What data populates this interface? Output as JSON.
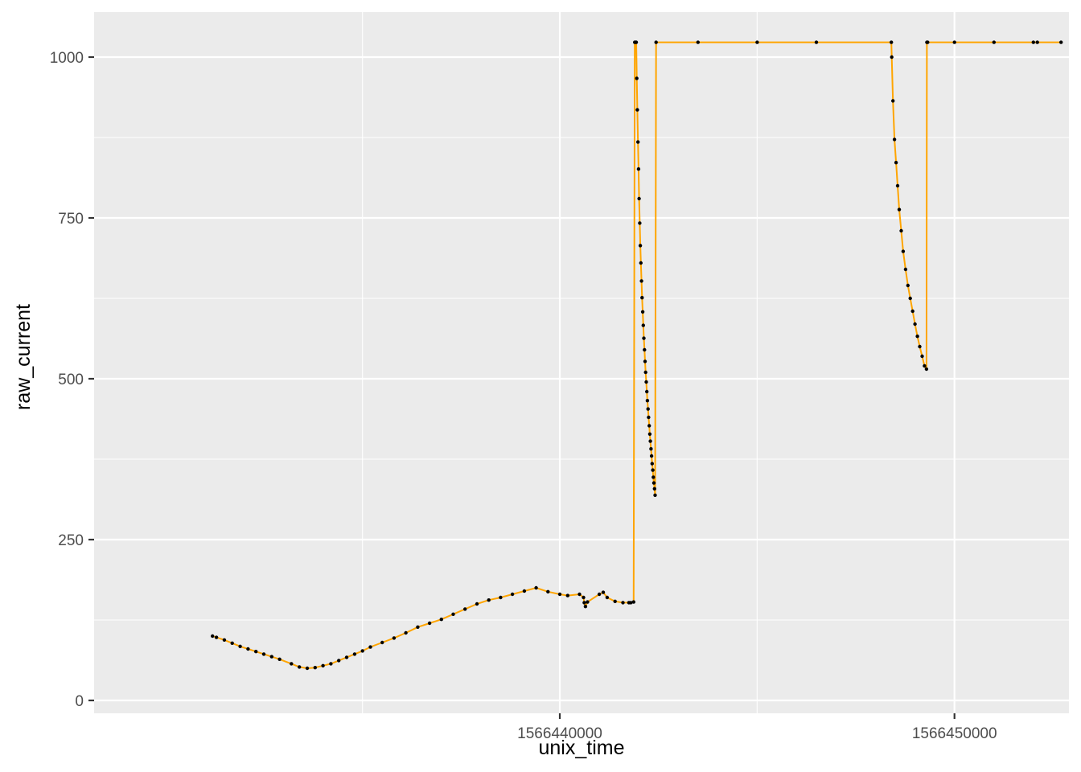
{
  "chart_data": {
    "type": "line",
    "xlabel": "unix_time",
    "ylabel": "raw_current",
    "xlim": [
      1566428200,
      1566452900
    ],
    "ylim": [
      -20,
      1070
    ],
    "x_ticks": [
      1566440000,
      1566450000
    ],
    "x_tick_labels": [
      "1566440000",
      "1566450000"
    ],
    "y_ticks": [
      0,
      250,
      500,
      750,
      1000
    ],
    "y_tick_labels": [
      "0",
      "250",
      "500",
      "750",
      "1000"
    ],
    "grid": true,
    "legend": "none",
    "panel_color": "#ebebeb",
    "grid_color": "#ffffff",
    "line_color": "#ffa500",
    "point_color": "#000000",
    "series": [
      {
        "x": [
          1566431200,
          1566431300,
          1566431500,
          1566431700,
          1566431900,
          1566432100,
          1566432300,
          1566432500,
          1566432700,
          1566432900,
          1566433200,
          1566433400,
          1566433600,
          1566433800,
          1566434000,
          1566434200,
          1566434400,
          1566434600,
          1566434800,
          1566435000,
          1566435200,
          1566435500,
          1566435800,
          1566436100,
          1566436400,
          1566436700,
          1566437000,
          1566437300,
          1566437600,
          1566437900,
          1566438200,
          1566438500,
          1566438800,
          1566439100,
          1566439400,
          1566439700,
          1566440000,
          1566440200,
          1566440500,
          1566440600,
          1566440620,
          1566440650,
          1566440700,
          1566441000,
          1566441100,
          1566441200,
          1566441400,
          1566441600,
          1566441750,
          1566441800,
          1566441870,
          1566441900,
          1566441920,
          1566441935,
          1566441950,
          1566441965,
          1566441980,
          1566441995,
          1566442010,
          1566442025,
          1566442040,
          1566442055,
          1566442070,
          1566442085,
          1566442100,
          1566442115,
          1566442130,
          1566442145,
          1566442160,
          1566442175,
          1566442190,
          1566442205,
          1566442220,
          1566442235,
          1566442250,
          1566442265,
          1566442280,
          1566442295,
          1566442310,
          1566442325,
          1566442340,
          1566442355,
          1566442370,
          1566442385,
          1566442400,
          1566442415,
          1566442440,
          1566443500,
          1566445000,
          1566446500,
          1566448400,
          1566448410,
          1566448440,
          1566448480,
          1566448520,
          1566448560,
          1566448600,
          1566448650,
          1566448700,
          1566448760,
          1566448820,
          1566448880,
          1566448940,
          1566449000,
          1566449060,
          1566449120,
          1566449180,
          1566449240,
          1566449290,
          1566449300,
          1566449320,
          1566450000,
          1566451000,
          1566452000,
          1566452100,
          1566452700
        ],
        "y": [
          100,
          98,
          94,
          89,
          84,
          80,
          76,
          72,
          68,
          64,
          57,
          52,
          50,
          51,
          54,
          57,
          62,
          67,
          72,
          77,
          83,
          90,
          97,
          105,
          114,
          120,
          126,
          134,
          142,
          150,
          156,
          160,
          165,
          170,
          175,
          169,
          165,
          163,
          165,
          160,
          152,
          146,
          153,
          165,
          168,
          160,
          154,
          152,
          152,
          152,
          153,
          1023,
          1023,
          1023,
          967,
          918,
          868,
          826,
          780,
          742,
          707,
          680,
          652,
          626,
          604,
          583,
          563,
          545,
          527,
          510,
          495,
          480,
          466,
          453,
          440,
          427,
          414,
          403,
          391,
          380,
          368,
          358,
          347,
          338,
          329,
          319,
          1023,
          1023,
          1023,
          1023,
          1023,
          1000,
          932,
          872,
          836,
          800,
          763,
          730,
          698,
          670,
          645,
          625,
          605,
          585,
          566,
          550,
          535,
          520,
          515,
          1023,
          1023,
          1023,
          1023,
          1023,
          1023,
          1023
        ]
      }
    ]
  }
}
